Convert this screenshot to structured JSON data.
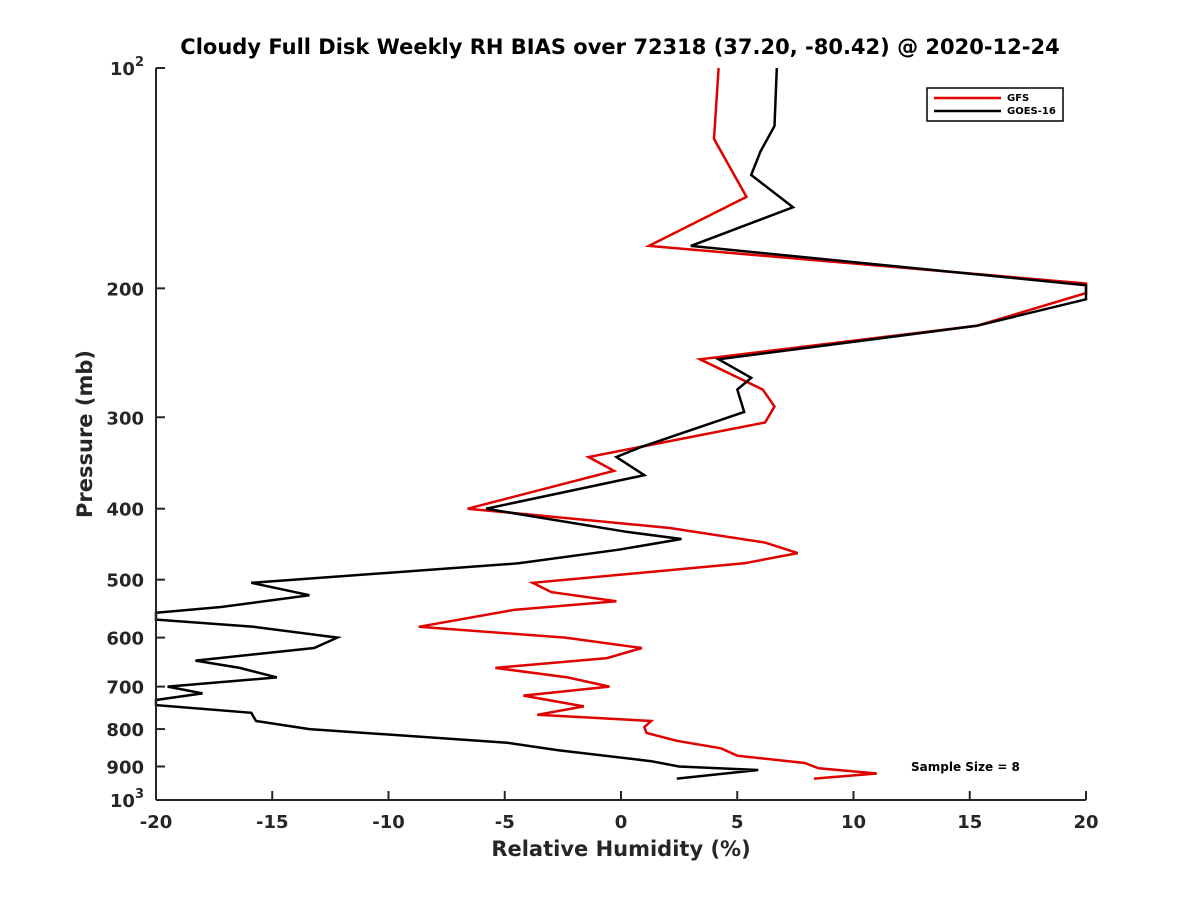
{
  "chart_data": {
    "type": "line",
    "title": "Cloudy Full Disk Weekly RH BIAS over 72318 (37.20, -80.42) @ 2020-12-24",
    "xlabel": "Relative Humidity (%)",
    "ylabel": "Pressure (mb)",
    "xlim": [
      -20,
      20
    ],
    "ylim": [
      100,
      1000
    ],
    "yscale": "log",
    "y_reversed": true,
    "xticks": [
      -20,
      -15,
      -10,
      -5,
      0,
      5,
      10,
      15,
      20
    ],
    "xtick_labels": [
      "-20",
      "-15",
      "-10",
      "-5",
      "0",
      "5",
      "10",
      "15",
      "20"
    ],
    "yticks": [
      100,
      200,
      300,
      400,
      500,
      600,
      700,
      800,
      900,
      1000
    ],
    "ytick_labels": [
      {
        "base": "10",
        "exp": "2"
      },
      {
        "base": "200",
        "exp": ""
      },
      {
        "base": "300",
        "exp": ""
      },
      {
        "base": "400",
        "exp": ""
      },
      {
        "base": "500",
        "exp": ""
      },
      {
        "base": "600",
        "exp": ""
      },
      {
        "base": "700",
        "exp": ""
      },
      {
        "base": "800",
        "exp": ""
      },
      {
        "base": "900",
        "exp": ""
      },
      {
        "base": "10",
        "exp": "3"
      }
    ],
    "grid": false,
    "legend_position": "top-right",
    "annotation": "Sample Size = 8",
    "series": [
      {
        "name": "GFS",
        "color": "#e00000",
        "points": [
          [
            4.2,
            100
          ],
          [
            4.0,
            125
          ],
          [
            5.4,
            150
          ],
          [
            1.2,
            175
          ],
          [
            20.0,
            197
          ],
          [
            20.0,
            203
          ],
          [
            15.3,
            225
          ],
          [
            3.4,
            250
          ],
          [
            6.1,
            275
          ],
          [
            6.6,
            290
          ],
          [
            6.2,
            305
          ],
          [
            -1.4,
            340
          ],
          [
            -0.3,
            355
          ],
          [
            -6.6,
            400
          ],
          [
            2.1,
            425
          ],
          [
            6.2,
            445
          ],
          [
            7.6,
            460
          ],
          [
            5.3,
            475
          ],
          [
            -3.8,
            505
          ],
          [
            -3.0,
            520
          ],
          [
            -0.2,
            535
          ],
          [
            -4.6,
            550
          ],
          [
            -8.7,
            580
          ],
          [
            -2.4,
            600
          ],
          [
            0.9,
            620
          ],
          [
            -0.6,
            640
          ],
          [
            -5.4,
            660
          ],
          [
            -2.3,
            680
          ],
          [
            -0.5,
            700
          ],
          [
            -4.2,
            720
          ],
          [
            -1.6,
            745
          ],
          [
            -3.6,
            765
          ],
          [
            1.3,
            780
          ],
          [
            1.0,
            795
          ],
          [
            1.1,
            810
          ],
          [
            2.4,
            830
          ],
          [
            4.3,
            850
          ],
          [
            5.0,
            870
          ],
          [
            7.9,
            890
          ],
          [
            8.5,
            905
          ],
          [
            11.0,
            920
          ],
          [
            8.3,
            935
          ]
        ]
      },
      {
        "name": "GOES-16",
        "color": "#000000",
        "points": [
          [
            6.7,
            100
          ],
          [
            6.6,
            120
          ],
          [
            6.0,
            130
          ],
          [
            5.6,
            140
          ],
          [
            7.4,
            155
          ],
          [
            3.0,
            175
          ],
          [
            20.0,
            198
          ],
          [
            20.0,
            207
          ],
          [
            15.3,
            225
          ],
          [
            4.2,
            250
          ],
          [
            5.6,
            265
          ],
          [
            5.0,
            275
          ],
          [
            5.3,
            295
          ],
          [
            0.8,
            330
          ],
          [
            -0.2,
            340
          ],
          [
            1.0,
            360
          ],
          [
            -5.8,
            400
          ],
          [
            0.2,
            430
          ],
          [
            2.6,
            440
          ],
          [
            -0.1,
            455
          ],
          [
            -4.4,
            475
          ],
          [
            -15.9,
            505
          ],
          [
            -13.4,
            525
          ],
          [
            -17.2,
            545
          ],
          [
            -20.0,
            555
          ],
          [
            -20.0,
            567
          ],
          [
            -15.8,
            580
          ],
          [
            -12.2,
            600
          ],
          [
            -13.2,
            620
          ],
          [
            -18.3,
            645
          ],
          [
            -16.4,
            660
          ],
          [
            -14.8,
            680
          ],
          [
            -19.5,
            700
          ],
          [
            -18.0,
            715
          ],
          [
            -20.0,
            730
          ],
          [
            -20.0,
            742
          ],
          [
            -15.9,
            760
          ],
          [
            -15.7,
            780
          ],
          [
            -13.4,
            800
          ],
          [
            -4.9,
            835
          ],
          [
            -2.7,
            855
          ],
          [
            1.3,
            885
          ],
          [
            2.5,
            900
          ],
          [
            5.9,
            910
          ],
          [
            2.4,
            935
          ]
        ]
      }
    ]
  }
}
